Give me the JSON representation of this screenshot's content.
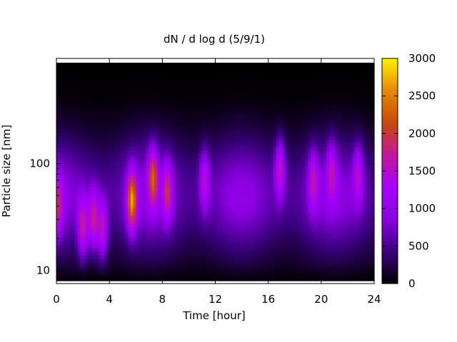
{
  "chart_data": {
    "type": "heatmap",
    "title": "dN / d log d (5/9/1)",
    "xlabel": "Time [hour]",
    "ylabel": "Particle size [nm]",
    "xlim": [
      0,
      24
    ],
    "ylim": [
      8,
      880
    ],
    "y_scale": "log",
    "x_ticks": [
      0,
      4,
      8,
      12,
      16,
      20,
      24
    ],
    "y_ticks": [
      10,
      100
    ],
    "colorbar": {
      "range": [
        0,
        3000
      ],
      "ticks": [
        0,
        500,
        1000,
        1500,
        2000,
        2500,
        3000
      ],
      "colormap": [
        "#000000",
        "#3b0080",
        "#8a00e0",
        "#a800ff",
        "#c2179a",
        "#c74a08",
        "#e58a00",
        "#fff200"
      ]
    },
    "background_level": 850,
    "events": [
      {
        "t": 0.1,
        "d": 40,
        "peak": 1500
      },
      {
        "t": 2.0,
        "d": 25,
        "peak": 1750
      },
      {
        "t": 2.8,
        "d": 30,
        "peak": 1800
      },
      {
        "t": 3.5,
        "d": 24,
        "peak": 1700
      },
      {
        "t": 5.7,
        "d": 45,
        "peak": 2400
      },
      {
        "t": 7.3,
        "d": 75,
        "peak": 2000
      },
      {
        "t": 8.4,
        "d": 55,
        "peak": 1700
      },
      {
        "t": 11.2,
        "d": 70,
        "peak": 1500
      },
      {
        "t": 16.9,
        "d": 90,
        "peak": 1700
      },
      {
        "t": 19.4,
        "d": 70,
        "peak": 1500
      },
      {
        "t": 20.8,
        "d": 85,
        "peak": 1400
      },
      {
        "t": 22.8,
        "d": 80,
        "peak": 1450
      }
    ]
  }
}
